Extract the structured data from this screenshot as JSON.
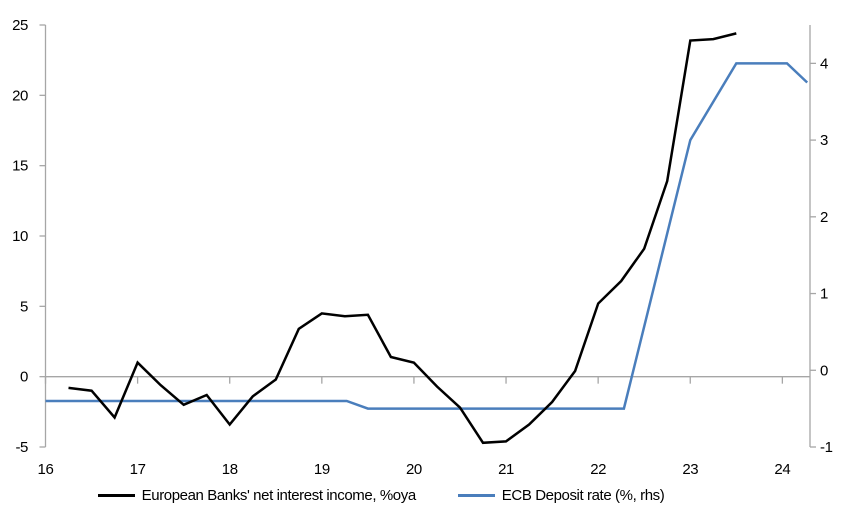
{
  "chart_data": {
    "type": "line",
    "title": "",
    "background": "#ffffff",
    "axis_color": "#a6a6a6",
    "text_color": "#000000",
    "x_axis": {
      "label": "",
      "tick_labels": [
        "16",
        "17",
        "18",
        "19",
        "20",
        "21",
        "22",
        "23",
        "24"
      ],
      "ticks": [
        16,
        17,
        18,
        19,
        20,
        21,
        22,
        23,
        24
      ],
      "range": [
        16,
        24.3
      ]
    },
    "y_axis_left": {
      "label": "",
      "tick_labels": [
        "-5",
        "0",
        "5",
        "10",
        "15",
        "20",
        "25"
      ],
      "ticks": [
        -5,
        0,
        5,
        10,
        15,
        20,
        25
      ],
      "range": [
        -5,
        25
      ]
    },
    "y_axis_right": {
      "label": "",
      "tick_labels": [
        "-1",
        "0",
        "1",
        "2",
        "3",
        "4"
      ],
      "ticks": [
        -1,
        0,
        1,
        2,
        3,
        4
      ],
      "range": [
        -1,
        4.5
      ]
    },
    "gridlines": {
      "zero_line_only": true
    },
    "legend_position": "bottom",
    "series": [
      {
        "name": "European Banks' net interest income, %oya",
        "axis": "left",
        "color": "#000000",
        "x": [
          16.25,
          16.5,
          16.75,
          17.0,
          17.25,
          17.5,
          17.75,
          18.0,
          18.25,
          18.5,
          18.75,
          19.0,
          19.25,
          19.5,
          19.75,
          20.0,
          20.25,
          20.5,
          20.75,
          21.0,
          21.25,
          21.5,
          21.75,
          22.0,
          22.25,
          22.5,
          22.75,
          23.0,
          23.25,
          23.5
        ],
        "values": [
          -0.8,
          -1.0,
          -2.9,
          1.0,
          -0.6,
          -2.0,
          -1.3,
          -3.4,
          -1.4,
          -0.2,
          3.4,
          4.5,
          4.3,
          4.4,
          1.4,
          1.0,
          -0.7,
          -2.2,
          -4.7,
          -4.6,
          -3.4,
          -1.8,
          0.4,
          5.2,
          6.8,
          9.1,
          13.9,
          23.9,
          24.0,
          24.4
        ]
      },
      {
        "name": "ECB Deposit rate (%, rhs)",
        "axis": "right",
        "color": "#4a7ebc",
        "x": [
          16.0,
          19.27,
          19.5,
          22.28,
          23.0,
          23.5,
          24.05,
          24.27
        ],
        "values": [
          -0.4,
          -0.4,
          -0.5,
          -0.5,
          3.0,
          4.0,
          4.0,
          3.75
        ]
      }
    ]
  }
}
